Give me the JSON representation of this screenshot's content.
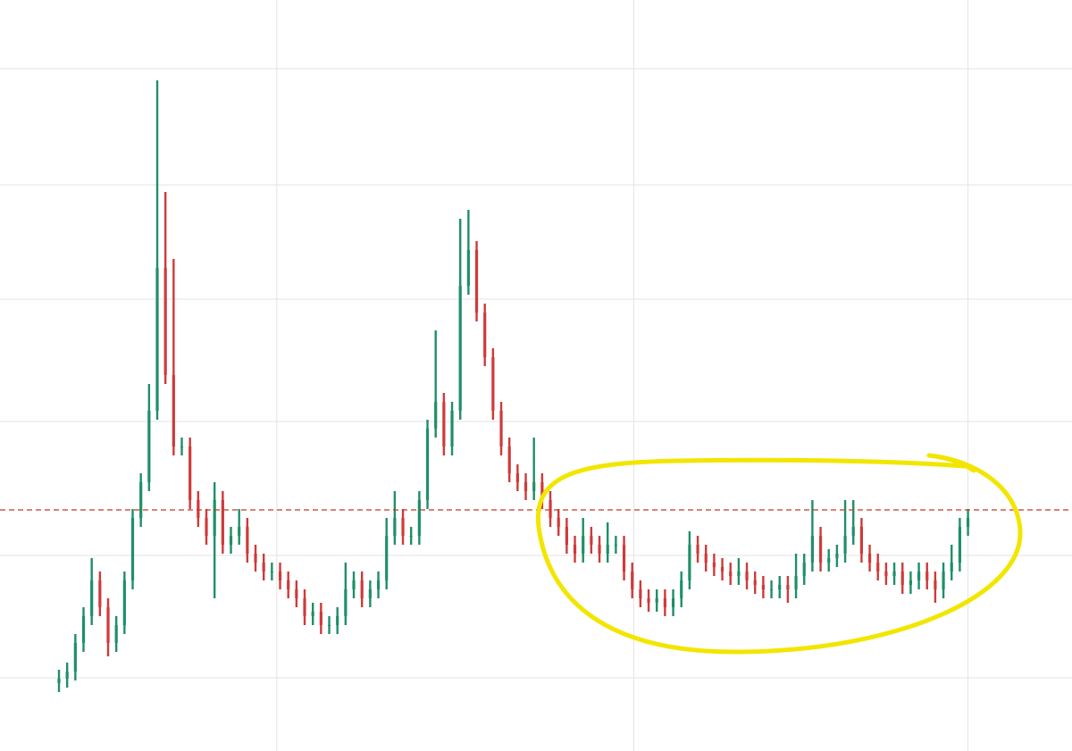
{
  "chart_data": {
    "type": "ohlc",
    "up_color": "#1f8f68",
    "down_color": "#cf3a3a",
    "ylim": [
      0,
      841
    ],
    "xlim": [
      -7.2,
      123.7
    ],
    "ygrid": [
      82,
      219,
      369,
      506,
      634,
      764
    ],
    "xgrid": [
      26.6,
      70.2,
      111
    ],
    "reference_line": {
      "value": 270,
      "color": "#c0392b",
      "style": "dashed"
    },
    "open": [
      76,
      81,
      89,
      121,
      151,
      191,
      161,
      121,
      141,
      191,
      261,
      301,
      381,
      541,
      421,
      341,
      341,
      281,
      261,
      241,
      281,
      231,
      241,
      251,
      221,
      211,
      201,
      201,
      191,
      181,
      171,
      151,
      156,
      141,
      141,
      151,
      181,
      191,
      171,
      181,
      191,
      241,
      261,
      241,
      241,
      281,
      361,
      391,
      341,
      381,
      521,
      561,
      491,
      441,
      381,
      341,
      311,
      301,
      291,
      301,
      281,
      261,
      251,
      231,
      221,
      241,
      231,
      221,
      231,
      231,
      201,
      181,
      171,
      166,
      171,
      161,
      171,
      191,
      231,
      221,
      211,
      206,
      201,
      196,
      201,
      191,
      186,
      181,
      181,
      186,
      181,
      196,
      211,
      241,
      211,
      216,
      221,
      241,
      251,
      221,
      211,
      201,
      196,
      201,
      186,
      191,
      201,
      191,
      181,
      201,
      211,
      251
    ],
    "high": [
      91,
      99,
      131,
      161,
      216,
      201,
      171,
      151,
      201,
      271,
      311,
      411,
      751,
      626,
      551,
      351,
      351,
      291,
      271,
      301,
      291,
      251,
      271,
      261,
      231,
      221,
      211,
      211,
      201,
      191,
      181,
      166,
      166,
      151,
      161,
      211,
      201,
      201,
      191,
      201,
      261,
      291,
      271,
      251,
      291,
      371,
      471,
      401,
      391,
      596,
      606,
      571,
      501,
      451,
      391,
      351,
      321,
      311,
      351,
      311,
      291,
      271,
      261,
      241,
      261,
      251,
      241,
      256,
      241,
      241,
      211,
      191,
      181,
      181,
      181,
      181,
      201,
      246,
      241,
      231,
      221,
      216,
      211,
      216,
      211,
      201,
      196,
      191,
      196,
      196,
      221,
      221,
      281,
      251,
      226,
      231,
      281,
      281,
      261,
      231,
      221,
      211,
      211,
      211,
      201,
      211,
      211,
      201,
      211,
      231,
      261,
      271
    ],
    "low": [
      66,
      71,
      79,
      111,
      141,
      151,
      106,
      111,
      131,
      181,
      251,
      291,
      371,
      411,
      331,
      331,
      271,
      251,
      231,
      171,
      221,
      221,
      231,
      211,
      201,
      191,
      191,
      181,
      171,
      161,
      141,
      141,
      131,
      131,
      131,
      141,
      171,
      161,
      161,
      171,
      181,
      231,
      231,
      231,
      231,
      271,
      351,
      331,
      331,
      371,
      511,
      481,
      431,
      371,
      331,
      301,
      291,
      281,
      281,
      271,
      251,
      241,
      221,
      211,
      211,
      221,
      211,
      211,
      221,
      191,
      171,
      161,
      156,
      156,
      151,
      151,
      161,
      181,
      211,
      201,
      196,
      191,
      186,
      186,
      181,
      176,
      171,
      171,
      171,
      166,
      171,
      186,
      201,
      201,
      201,
      206,
      211,
      231,
      211,
      201,
      191,
      186,
      186,
      176,
      176,
      181,
      181,
      166,
      171,
      191,
      201,
      241
    ],
    "close": [
      81,
      89,
      121,
      151,
      191,
      161,
      121,
      141,
      191,
      261,
      301,
      381,
      541,
      421,
      341,
      341,
      281,
      261,
      241,
      281,
      231,
      241,
      251,
      221,
      211,
      201,
      201,
      191,
      181,
      171,
      151,
      156,
      141,
      141,
      151,
      181,
      191,
      171,
      181,
      191,
      241,
      261,
      241,
      241,
      281,
      361,
      391,
      341,
      381,
      521,
      561,
      491,
      441,
      381,
      341,
      311,
      301,
      291,
      301,
      281,
      261,
      251,
      231,
      221,
      241,
      231,
      221,
      231,
      231,
      201,
      181,
      171,
      166,
      171,
      161,
      171,
      191,
      231,
      221,
      211,
      206,
      201,
      196,
      201,
      191,
      186,
      181,
      181,
      186,
      181,
      196,
      211,
      241,
      211,
      216,
      221,
      241,
      251,
      221,
      211,
      201,
      196,
      201,
      186,
      191,
      201,
      191,
      181,
      201,
      211,
      251,
      261
    ]
  }
}
